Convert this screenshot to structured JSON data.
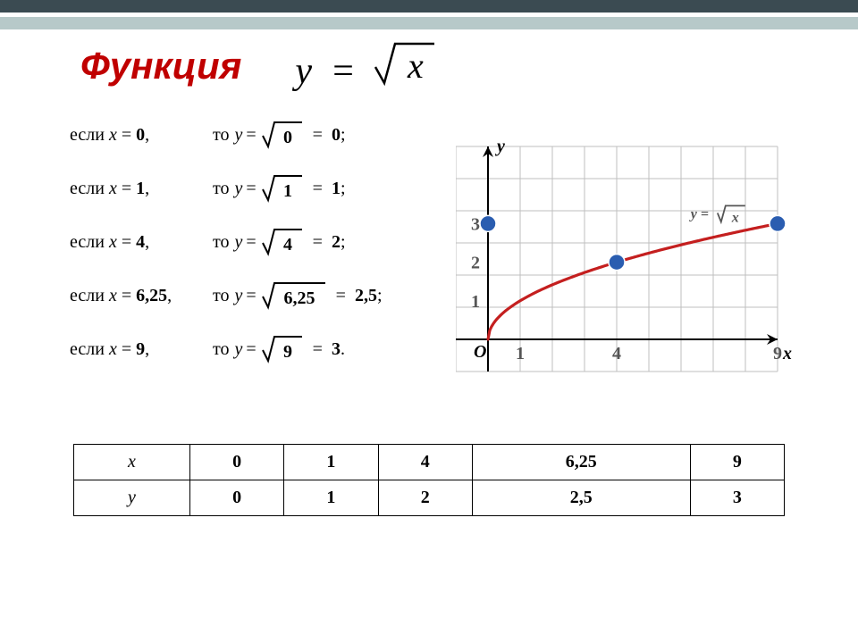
{
  "bars": {
    "dark": "#3b4b52",
    "light": "#b7c9c9"
  },
  "title": "Функция",
  "main_formula": {
    "lhs": "y",
    "eq": "=",
    "rhs_radicand": "x"
  },
  "calc": [
    {
      "x": "0",
      "rad": "0",
      "res": "0",
      "tail": ";"
    },
    {
      "x": "1",
      "rad": "1",
      "res": "1",
      "tail": ";"
    },
    {
      "x": "4",
      "rad": "4",
      "res": "2",
      "tail": ";"
    },
    {
      "x": "6,25",
      "rad": "6,25",
      "res": "2,5",
      "tail": ";"
    },
    {
      "x": "9",
      "rad": "9",
      "res": "3",
      "tail": "."
    }
  ],
  "words": {
    "if": "если",
    "then": "то"
  },
  "chart": {
    "label_x": "x",
    "label_y": "y",
    "origin": "O",
    "xticks": [
      1,
      4,
      9
    ],
    "yticks": [
      1,
      2,
      3
    ],
    "curve_color": "#c41f1f",
    "point_color": "#2a5db0",
    "grid_color": "#bfbfbf",
    "grid_cell": 36,
    "y_unit_cells": 1.2,
    "axis_color": "#000000",
    "curve_label": "y = √x",
    "curve_label_parts": {
      "l": "y",
      "eq": "=",
      "r": "x"
    },
    "points": [
      {
        "x": 0,
        "y": 3
      },
      {
        "x": 4,
        "y": 2
      },
      {
        "x": 9,
        "y": 3
      }
    ]
  },
  "table": {
    "row1_label": "x",
    "row2_label": "y",
    "cols": [
      {
        "x": "0",
        "y": "0"
      },
      {
        "x": "1",
        "y": "1"
      },
      {
        "x": "4",
        "y": "2"
      },
      {
        "x": "6,25",
        "y": "2,5"
      },
      {
        "x": "9",
        "y": "3"
      }
    ]
  }
}
